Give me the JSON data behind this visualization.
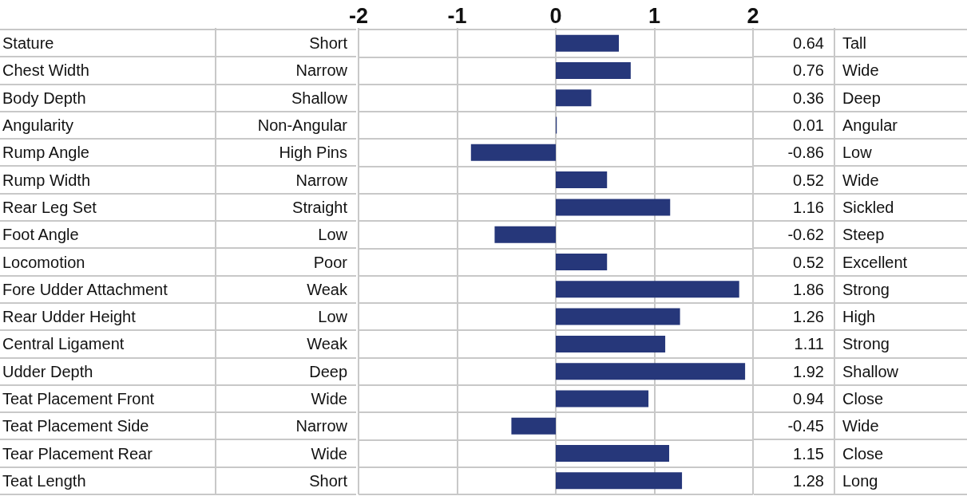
{
  "chart_data": {
    "type": "bar",
    "orientation": "horizontal",
    "categories": [
      "Stature",
      "Chest Width",
      "Body Depth",
      "Angularity",
      "Rump Angle",
      "Rump Width",
      "Rear Leg Set",
      "Foot Angle",
      "Locomotion",
      "Fore Udder Attachment",
      "Rear Udder Height",
      "Central Ligament",
      "Udder Depth",
      "Teat Placement Front",
      "Teat Placement Side",
      "Tear Placement Rear",
      "Teat Length"
    ],
    "values": [
      0.64,
      0.76,
      0.36,
      0.01,
      -0.86,
      0.52,
      1.16,
      -0.62,
      0.52,
      1.86,
      1.26,
      1.11,
      1.92,
      0.94,
      -0.45,
      1.15,
      1.28
    ],
    "color": "#26377a",
    "x2lim": [
      -2,
      2
    ],
    "x2ticks": [
      -2,
      -1,
      0,
      1,
      2
    ],
    "grid": true,
    "data_labels": true,
    "annotations": [
      "Short",
      "Tall",
      "Narrow",
      "Wide",
      "Shallow",
      "Deep",
      "Non-Angular",
      "Angular",
      "High Pins",
      "Low",
      "Narrow",
      "Wide",
      "Straight",
      "Sickled",
      "Low",
      "Steep",
      "Poor",
      "Excellent",
      "Weak",
      "Strong",
      "Low",
      "High",
      "Weak",
      "Strong",
      "Deep",
      "Shallow",
      "Wide",
      "Close",
      "Narrow",
      "Wide",
      "Wide",
      "Close",
      "Short",
      "Long"
    ]
  }
}
